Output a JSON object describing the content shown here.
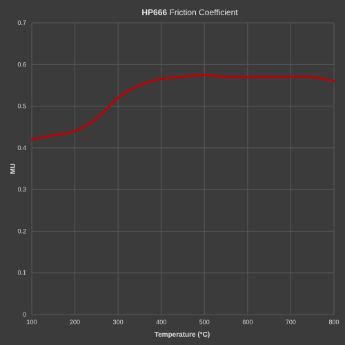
{
  "chart_data": {
    "type": "line",
    "title_bold": "HP666",
    "title_rest": " Friction Coefficient",
    "xlabel": "Temperature (°C)",
    "ylabel": "MU",
    "xlim": [
      100,
      800
    ],
    "ylim": [
      0,
      0.7
    ],
    "x_ticks": [
      100,
      200,
      300,
      400,
      500,
      600,
      700,
      800
    ],
    "y_ticks": [
      0,
      0.1,
      0.2,
      0.3,
      0.4,
      0.5,
      0.6,
      0.7
    ],
    "y_tick_labels": [
      "0",
      "0.1",
      "0.2",
      "0.3",
      "0.4",
      "0.5",
      "0.6",
      "0.7"
    ],
    "grid": true,
    "series": [
      {
        "color": "#c00000",
        "x": [
          100,
          150,
          200,
          250,
          300,
          350,
          400,
          450,
          500,
          550,
          600,
          650,
          700,
          750,
          800
        ],
        "y": [
          0.42,
          0.43,
          0.44,
          0.47,
          0.52,
          0.55,
          0.565,
          0.57,
          0.575,
          0.57,
          0.57,
          0.57,
          0.57,
          0.57,
          0.56
        ]
      }
    ]
  }
}
